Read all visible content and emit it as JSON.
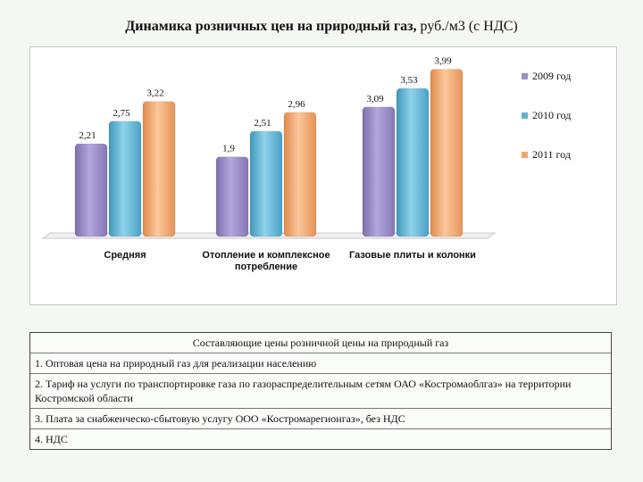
{
  "title_bold": "Динамика розничных цен на природный газ,",
  "title_rest": " руб./м3 (с НДС)",
  "chart_data": {
    "type": "bar",
    "title": "Динамика розничных цен на природный газ, руб./м3 (с НДС)",
    "categories": [
      "Средняя",
      "Отопление и комплексное потребление",
      "Газовые плиты и колонки"
    ],
    "series": [
      {
        "name": "2009 год",
        "values": [
          2.21,
          1.9,
          3.09
        ],
        "labels": [
          "2,21",
          "1,9",
          "3,09"
        ],
        "color": "#9b8ec4"
      },
      {
        "name": "2010 год",
        "values": [
          2.75,
          2.51,
          3.53
        ],
        "labels": [
          "2,75",
          "2,51",
          "3,53"
        ],
        "color": "#5fb3cf"
      },
      {
        "name": "2011 год",
        "values": [
          3.22,
          2.96,
          3.99
        ],
        "labels": [
          "3,22",
          "2,96",
          "3,99"
        ],
        "color": "#f2a36b"
      }
    ],
    "ylim": [
      0,
      4.3
    ],
    "grid": false,
    "legend": "right"
  },
  "components": {
    "header": "Составляющие цены розничной цены на природный газ",
    "items": [
      "1. Оптовая цена на природный газ для реализации населению",
      "2. Тариф на услуги по транспортировке газа по газораспределительным сетям ОАО «Костромаоблгаз» на территории Костромской области",
      "3. Плата за снабженческо-сбытовую услугу ООО «Костромарегионгаз», без НДС",
      "4. НДС"
    ]
  }
}
